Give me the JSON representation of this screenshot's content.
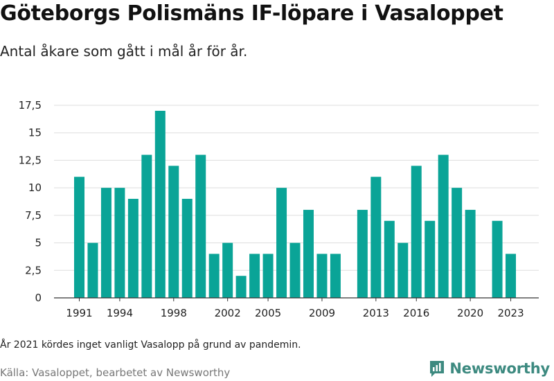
{
  "title": "Göteborgs Polismäns IF-löpare i Vasaloppet",
  "subtitle": "Antal åkare som gått i mål år för år.",
  "note": "År 2021 kördes inget vanligt Vasalopp på grund av pandemin.",
  "source": "Källa: Vasaloppet, bearbetet av Newsworthy",
  "logo_text": "Newsworthy",
  "colors": {
    "bar": "#0aa497",
    "grid": "#dddddd",
    "axis": "#333333",
    "logo": "#3d8a80"
  },
  "chart_data": {
    "type": "bar",
    "title": "Göteborgs Polismäns IF-löpare i Vasaloppet",
    "subtitle": "Antal åkare som gått i mål år för år.",
    "xlabel": "",
    "ylabel": "",
    "ylim": [
      0,
      17.5
    ],
    "grid": true,
    "yticks": [
      0,
      2.5,
      5,
      7.5,
      10,
      12.5,
      15,
      17.5
    ],
    "ytick_labels": [
      "0",
      "2,5",
      "5",
      "7,5",
      "10",
      "12,5",
      "15",
      "17,5"
    ],
    "xticks": [
      1991,
      1994,
      1998,
      2002,
      2005,
      2009,
      2013,
      2016,
      2020,
      2023
    ],
    "x": [
      1991,
      1992,
      1993,
      1994,
      1995,
      1996,
      1997,
      1998,
      1999,
      2000,
      2001,
      2002,
      2003,
      2004,
      2005,
      2006,
      2007,
      2008,
      2009,
      2010,
      2011,
      2012,
      2013,
      2014,
      2015,
      2016,
      2017,
      2018,
      2019,
      2020,
      2021,
      2022,
      2023
    ],
    "values": [
      11,
      5,
      10,
      10,
      9,
      13,
      17,
      12,
      9,
      13,
      4,
      5,
      2,
      4,
      4,
      10,
      5,
      8,
      4,
      4,
      0,
      8,
      11,
      7,
      5,
      12,
      7,
      13,
      10,
      8,
      0,
      7,
      4
    ]
  }
}
